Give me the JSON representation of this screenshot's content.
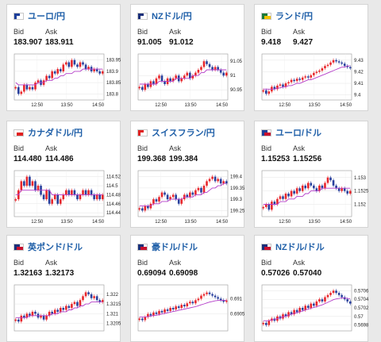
{
  "labels": {
    "bid": "Bid",
    "ask": "Ask"
  },
  "colors": {
    "up": "#e8262b",
    "down": "#283f9c",
    "ma": "#b43cc8",
    "title": "#1f5fa8"
  },
  "cards": [
    {
      "title": "ユーロ/円",
      "flag": "flag-eu-jp-icon",
      "bid": "183.907",
      "ask": "183.911",
      "chart_data": {
        "type": "candlestick",
        "y_ticks": [
          "183.95",
          "183.9",
          "183.85",
          "183.8"
        ],
        "x_ticks": [
          "12:50",
          "13:50",
          "14:50"
        ],
        "ylim": [
          183.78,
          183.97
        ],
        "close": [
          183.83,
          183.8,
          183.81,
          183.84,
          183.82,
          183.83,
          183.82,
          183.85,
          183.86,
          183.84,
          183.86,
          183.88,
          183.87,
          183.9,
          183.89,
          183.91,
          183.9,
          183.93,
          183.94,
          183.92,
          183.95,
          183.93,
          183.92,
          183.94,
          183.93,
          183.91,
          183.92,
          183.9,
          183.91,
          183.9,
          183.89,
          183.9
        ],
        "ma": [
          183.85,
          183.84,
          183.84,
          183.84,
          183.84,
          183.84,
          183.84,
          183.84,
          183.85,
          183.85,
          183.85,
          183.86,
          183.86,
          183.86,
          183.87,
          183.87,
          183.88,
          183.88,
          183.89,
          183.89,
          183.89,
          183.9,
          183.9,
          183.9,
          183.91,
          183.91,
          183.91,
          183.91,
          183.91,
          183.91,
          183.91,
          183.91
        ]
      }
    },
    {
      "title": "NZドル/円",
      "flag": "flag-nz-jp-icon",
      "bid": "91.005",
      "ask": "91.012",
      "chart_data": {
        "type": "candlestick",
        "y_ticks": [
          "91.05",
          "91",
          "90.95"
        ],
        "x_ticks": [
          "12:50",
          "13:50",
          "14:50"
        ],
        "ylim": [
          90.92,
          91.07
        ],
        "close": [
          90.96,
          90.95,
          90.97,
          90.96,
          90.98,
          90.97,
          90.99,
          91.0,
          90.98,
          90.97,
          90.99,
          90.98,
          90.99,
          91.0,
          90.98,
          90.99,
          91.0,
          91.01,
          90.99,
          91.0,
          91.01,
          91.02,
          91.03,
          91.05,
          91.04,
          91.03,
          91.02,
          91.03,
          91.02,
          91.01,
          91.0,
          91.01
        ],
        "ma": [
          90.97,
          90.97,
          90.97,
          90.97,
          90.97,
          90.97,
          90.97,
          90.98,
          90.98,
          90.98,
          90.98,
          90.98,
          90.98,
          90.99,
          90.99,
          90.99,
          90.99,
          90.99,
          90.99,
          91.0,
          91.0,
          91.0,
          91.01,
          91.01,
          91.02,
          91.02,
          91.02,
          91.02,
          91.02,
          91.02,
          91.02,
          91.02
        ]
      }
    },
    {
      "title": "ランド/円",
      "flag": "flag-za-jp-icon",
      "bid": "9.418",
      "ask": "9.427",
      "chart_data": {
        "type": "candlestick",
        "y_ticks": [
          "9.43",
          "9.42",
          "9.41",
          "9.4"
        ],
        "x_ticks": [
          "12:50",
          "13:50",
          "14:50"
        ],
        "ylim": [
          9.397,
          9.434
        ],
        "close": [
          9.404,
          9.401,
          9.403,
          9.407,
          9.405,
          9.408,
          9.409,
          9.407,
          9.41,
          9.411,
          9.413,
          9.412,
          9.414,
          9.413,
          9.415,
          9.416,
          9.415,
          9.417,
          9.419,
          9.42,
          9.421,
          9.423,
          9.425,
          9.426,
          9.428,
          9.43,
          9.429,
          9.428,
          9.427,
          9.425,
          9.424,
          9.423
        ],
        "ma": [
          9.405,
          9.405,
          9.405,
          9.405,
          9.405,
          9.406,
          9.406,
          9.407,
          9.407,
          9.408,
          9.408,
          9.409,
          9.41,
          9.41,
          9.411,
          9.412,
          9.413,
          9.413,
          9.414,
          9.415,
          9.416,
          9.417,
          9.418,
          9.419,
          9.42,
          9.421,
          9.422,
          9.423,
          9.424,
          9.424,
          9.425,
          9.425
        ]
      }
    },
    {
      "title": "カナダドル/円",
      "flag": "flag-ca-jp-icon",
      "bid": "114.480",
      "ask": "114.486",
      "chart_data": {
        "type": "candlestick",
        "y_ticks": [
          "114.52",
          "114.5",
          "114.48",
          "114.46",
          "114.44"
        ],
        "x_ticks": [
          "12:50",
          "13:50",
          "14:50"
        ],
        "ylim": [
          114.435,
          114.53
        ],
        "close": [
          114.47,
          114.49,
          114.51,
          114.5,
          114.52,
          114.5,
          114.51,
          114.49,
          114.5,
          114.48,
          114.47,
          114.49,
          114.46,
          114.47,
          114.48,
          114.46,
          114.47,
          114.48,
          114.49,
          114.48,
          114.49,
          114.48,
          114.47,
          114.48,
          114.49,
          114.48,
          114.49,
          114.48,
          114.47,
          114.48,
          114.47,
          114.48
        ],
        "ma": [
          114.48,
          114.48,
          114.49,
          114.49,
          114.49,
          114.49,
          114.49,
          114.49,
          114.49,
          114.49,
          114.49,
          114.49,
          114.49,
          114.48,
          114.48,
          114.48,
          114.48,
          114.48,
          114.48,
          114.48,
          114.48,
          114.48,
          114.48,
          114.48,
          114.48,
          114.48,
          114.48,
          114.48,
          114.48,
          114.48,
          114.48,
          114.48
        ]
      }
    },
    {
      "title": "スイスフラン/円",
      "flag": "flag-ch-jp-icon",
      "bid": "199.368",
      "ask": "199.384",
      "chart_data": {
        "type": "candlestick",
        "y_ticks": [
          "199.4",
          "199.35",
          "199.3",
          "199.25"
        ],
        "x_ticks": [
          "12:50",
          "13:50",
          "14:50"
        ],
        "ylim": [
          199.23,
          199.42
        ],
        "close": [
          199.26,
          199.25,
          199.27,
          199.26,
          199.28,
          199.3,
          199.29,
          199.31,
          199.33,
          199.32,
          199.3,
          199.31,
          199.32,
          199.3,
          199.28,
          199.3,
          199.32,
          199.31,
          199.33,
          199.32,
          199.34,
          199.35,
          199.33,
          199.36,
          199.38,
          199.39,
          199.4,
          199.38,
          199.39,
          199.37,
          199.38,
          199.37
        ],
        "ma": [
          199.27,
          199.27,
          199.27,
          199.27,
          199.27,
          199.28,
          199.28,
          199.28,
          199.29,
          199.29,
          199.29,
          199.3,
          199.3,
          199.3,
          199.3,
          199.3,
          199.31,
          199.31,
          199.31,
          199.31,
          199.32,
          199.32,
          199.32,
          199.33,
          199.33,
          199.34,
          199.35,
          199.35,
          199.36,
          199.36,
          199.37,
          199.37
        ]
      }
    },
    {
      "title": "ユーロ/ドル",
      "flag": "flag-eu-us-icon",
      "bid": "1.15253",
      "ask": "1.15256",
      "chart_data": {
        "type": "candlestick",
        "y_ticks": [
          "1.153",
          "1.1525",
          "1.152"
        ],
        "x_ticks": [
          "12:50",
          "13:50",
          "14:50"
        ],
        "ylim": [
          1.1516,
          1.1532
        ],
        "close": [
          1.1519,
          1.152,
          1.1518,
          1.1521,
          1.152,
          1.1522,
          1.1523,
          1.1522,
          1.1524,
          1.1523,
          1.1525,
          1.1524,
          1.1526,
          1.1525,
          1.1527,
          1.1526,
          1.1528,
          1.1527,
          1.1526,
          1.1525,
          1.1527,
          1.1526,
          1.1528,
          1.153,
          1.1529,
          1.1527,
          1.1526,
          1.1525,
          1.1526,
          1.1525,
          1.1524,
          1.1525
        ],
        "ma": [
          1.152,
          1.152,
          1.152,
          1.152,
          1.152,
          1.152,
          1.1521,
          1.1521,
          1.1521,
          1.1522,
          1.1522,
          1.1522,
          1.1523,
          1.1523,
          1.1523,
          1.1524,
          1.1524,
          1.1525,
          1.1525,
          1.1525,
          1.1525,
          1.1526,
          1.1526,
          1.1526,
          1.1526,
          1.1526,
          1.1526,
          1.1526,
          1.1526,
          1.1526,
          1.1526,
          1.1526
        ]
      }
    },
    {
      "title": "英ポンド/ドル",
      "flag": "flag-gb-us-icon",
      "bid": "1.32163",
      "ask": "1.32173",
      "chart_data": {
        "type": "candlestick",
        "y_ticks": [
          "1.322",
          "1.3215",
          "1.321",
          "1.3205"
        ],
        "x_ticks": [],
        "ylim": [
          1.3202,
          1.3224
        ],
        "close": [
          1.3207,
          1.3206,
          1.3209,
          1.3208,
          1.321,
          1.3209,
          1.3211,
          1.321,
          1.3208,
          1.3209,
          1.3207,
          1.3209,
          1.3211,
          1.321,
          1.3212,
          1.3211,
          1.3213,
          1.3212,
          1.3214,
          1.3213,
          1.3215,
          1.3216,
          1.3214,
          1.3217,
          1.3219,
          1.3221,
          1.322,
          1.3218,
          1.3219,
          1.3217,
          1.3216,
          1.3217
        ],
        "ma": [
          1.3208,
          1.3208,
          1.3208,
          1.3208,
          1.3208,
          1.3209,
          1.3209,
          1.3209,
          1.3209,
          1.3209,
          1.3209,
          1.3209,
          1.3209,
          1.321,
          1.321,
          1.321,
          1.3211,
          1.3211,
          1.3211,
          1.3212,
          1.3212,
          1.3213,
          1.3213,
          1.3214,
          1.3214,
          1.3215,
          1.3215,
          1.3216,
          1.3216,
          1.3216,
          1.3216,
          1.3216
        ]
      }
    },
    {
      "title": "豪ドル/ドル",
      "flag": "flag-au-us-icon",
      "bid": "0.69094",
      "ask": "0.69098",
      "chart_data": {
        "type": "candlestick",
        "y_ticks": [
          "0.691",
          "0.6905"
        ],
        "x_ticks": [],
        "ylim": [
          0.69,
          0.6914
        ],
        "close": [
          0.69035,
          0.6903,
          0.6904,
          0.6905,
          0.69045,
          0.69055,
          0.6905,
          0.6906,
          0.69055,
          0.69065,
          0.6906,
          0.6907,
          0.69065,
          0.69075,
          0.6907,
          0.6908,
          0.69075,
          0.69085,
          0.6909,
          0.69085,
          0.69095,
          0.691,
          0.6911,
          0.69115,
          0.6912,
          0.69115,
          0.6911,
          0.69105,
          0.691,
          0.69095,
          0.6909,
          0.69094
        ],
        "ma": [
          0.6904,
          0.6904,
          0.6904,
          0.69042,
          0.69043,
          0.69045,
          0.69046,
          0.69048,
          0.6905,
          0.69052,
          0.69054,
          0.69056,
          0.69058,
          0.6906,
          0.69062,
          0.69064,
          0.69066,
          0.69068,
          0.6907,
          0.69072,
          0.69074,
          0.69077,
          0.6908,
          0.69083,
          0.69086,
          0.69089,
          0.69091,
          0.69093,
          0.69094,
          0.69095,
          0.69095,
          0.69095
        ]
      }
    },
    {
      "title": "NZドル/ドル",
      "flag": "flag-nz-us-icon",
      "bid": "0.57026",
      "ask": "0.57040",
      "chart_data": {
        "type": "candlestick",
        "y_ticks": [
          "0.5706",
          "0.5704",
          "0.5702",
          "0.57",
          "0.5698"
        ],
        "x_ticks": [],
        "ylim": [
          0.5697,
          0.5707
        ],
        "close": [
          0.56985,
          0.5698,
          0.5699,
          0.56995,
          0.5699,
          0.57,
          0.56995,
          0.57005,
          0.57,
          0.5701,
          0.57005,
          0.57015,
          0.5701,
          0.5702,
          0.57015,
          0.57025,
          0.5702,
          0.5703,
          0.57025,
          0.57035,
          0.5704,
          0.57035,
          0.57045,
          0.5705,
          0.57055,
          0.5706,
          0.57055,
          0.5705,
          0.57045,
          0.5704,
          0.57035,
          0.5703
        ],
        "ma": [
          0.5699,
          0.5699,
          0.5699,
          0.56992,
          0.56993,
          0.56995,
          0.56997,
          0.56999,
          0.57001,
          0.57003,
          0.57005,
          0.57007,
          0.57009,
          0.57011,
          0.57013,
          0.57015,
          0.57017,
          0.57019,
          0.57021,
          0.57023,
          0.57025,
          0.57027,
          0.5703,
          0.57033,
          0.57036,
          0.57039,
          0.57041,
          0.57042,
          0.57043,
          0.57043,
          0.57042,
          0.57041
        ]
      }
    }
  ]
}
